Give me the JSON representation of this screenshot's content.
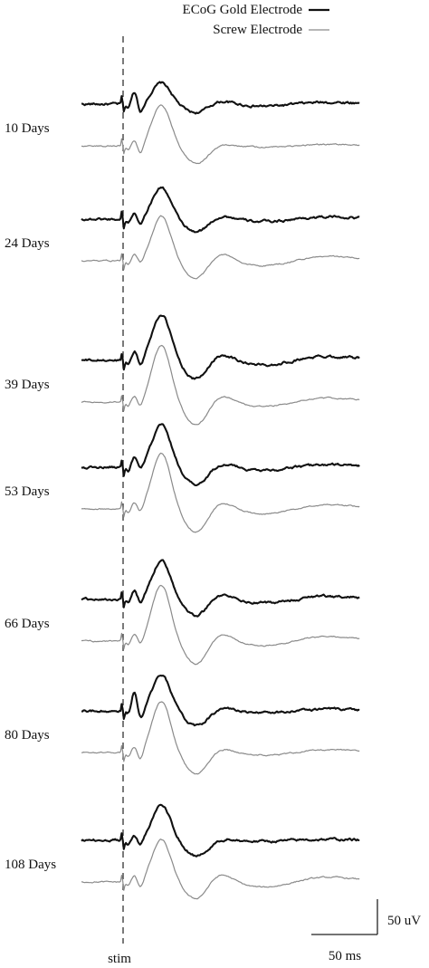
{
  "chart_data": {
    "type": "line",
    "title": "",
    "legend": {
      "placement": "top-right",
      "entries": [
        {
          "name": "ECoG Gold Electrode",
          "color": "#111111"
        },
        {
          "name": "Screw Electrode",
          "color": "#8a8a8a"
        }
      ]
    },
    "stim_label": "stim",
    "time_unit_ms": 50,
    "amplitude_unit_uV": 50,
    "scalebar": {
      "time_label": "50 ms",
      "amplitude_label": "50 uV"
    },
    "panels": [
      {
        "label": "10 Days",
        "gold": {
          "peak1": 20,
          "trough1": -15,
          "peak2": 30,
          "late": 6,
          "noise": 2.2
        },
        "screw": {
          "peak1": 10,
          "trough1": -15,
          "peak2": 57,
          "late": 4,
          "noise": 1.2
        }
      },
      {
        "label": "24 Days",
        "gold": {
          "peak1": 10,
          "trough1": -10,
          "peak2": 45,
          "late": 7,
          "noise": 2.2
        },
        "screw": {
          "peak1": 10,
          "trough1": -8,
          "peak2": 63,
          "late": 14,
          "noise": 1.2
        }
      },
      {
        "label": "39 Days",
        "gold": {
          "peak1": 15,
          "trough1": -12,
          "peak2": 65,
          "late": 13,
          "noise": 2.2
        },
        "screw": {
          "peak1": 10,
          "trough1": -12,
          "peak2": 80,
          "late": 13,
          "noise": 1.2
        }
      },
      {
        "label": "53 Days",
        "gold": {
          "peak1": 15,
          "trough1": -8,
          "peak2": 60,
          "late": 8,
          "noise": 2.2
        },
        "screw": {
          "peak1": 10,
          "trough1": -10,
          "peak2": 80,
          "late": 14,
          "noise": 1.2
        }
      },
      {
        "label": "66 Days",
        "gold": {
          "peak1": 14,
          "trough1": -10,
          "peak2": 55,
          "late": 10,
          "noise": 2.2
        },
        "screw": {
          "peak1": 10,
          "trough1": -10,
          "peak2": 80,
          "late": 14,
          "noise": 1.2
        }
      },
      {
        "label": "80 Days",
        "gold": {
          "peak1": 30,
          "trough1": -18,
          "peak2": 50,
          "late": 5,
          "noise": 2.2
        },
        "screw": {
          "peak1": 10,
          "trough1": -15,
          "peak2": 72,
          "late": 8,
          "noise": 1.2
        }
      },
      {
        "label": "108 Days",
        "gold": {
          "peak1": 8,
          "trough1": -10,
          "peak2": 50,
          "late": 3,
          "noise": 2.2
        },
        "screw": {
          "peak1": 10,
          "trough1": -12,
          "peak2": 60,
          "late": 15,
          "noise": 1.2
        }
      }
    ]
  }
}
